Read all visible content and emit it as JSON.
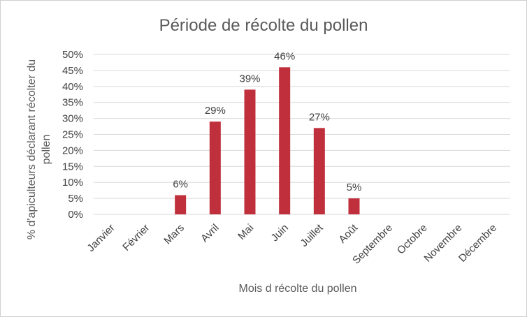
{
  "chart_data": {
    "type": "bar",
    "title": "Période de récolte du pollen",
    "xlabel": "Mois d récolte du pollen",
    "ylabel_lines": [
      "% d'apiculteurs déclarant récolter du",
      "pollen"
    ],
    "categories": [
      "Janvier",
      "Février",
      "Mars",
      "Avril",
      "Mai",
      "Juin",
      "Juillet",
      "Août",
      "Septembre",
      "Octobre",
      "Novembre",
      "Décembre"
    ],
    "values": [
      null,
      null,
      6,
      29,
      39,
      46,
      27,
      5,
      null,
      null,
      null,
      null
    ],
    "data_labels": [
      "",
      "",
      "6%",
      "29%",
      "39%",
      "46%",
      "27%",
      "5%",
      "",
      "",
      "",
      ""
    ],
    "y_ticks": [
      "0%",
      "5%",
      "10%",
      "15%",
      "20%",
      "25%",
      "30%",
      "35%",
      "40%",
      "45%",
      "50%"
    ],
    "ylim": [
      0,
      50
    ],
    "grid": true,
    "bar_color": "#c0303c"
  }
}
